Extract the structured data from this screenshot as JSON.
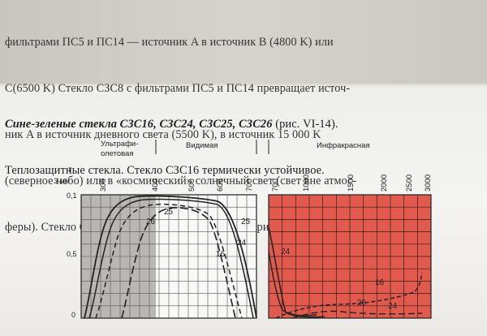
{
  "text": {
    "paragraph1_lines": [
      "фильтрами ПС5 и ПС14 — источник A в источник B (4800 K) или",
      "C(6500 K) Стекло СЗС8 с фильтрами ПС5 и ПС14 превращает источ-",
      "ник A в источник дневного света (5500 K), в источник 15 000 K",
      "(северное небо) или в «космический» солнечный свет (свет вне атмос-",
      "феры). Стекло СЗС22 вместе с ФС7 — сенситометрический синий."
    ],
    "heading_bold": "Сине-зеленые стекла СЗС16, СЗС24, СЗС25, СЗС26",
    "heading_rest": " (рис. VI-14).",
    "paragraph2_line2": "Теплозащитные стекла. Стекло СЗС16 термически устойчивое."
  },
  "figure": {
    "y_axis_symbol": "τ",
    "y_axis_unit": "3 мм",
    "y_ticks": [
      "0,1",
      "0,5",
      "0"
    ],
    "region_labels": {
      "uv": "Ультрафи-\nолетовая",
      "visible": "Видимая",
      "ir": "Инфракрасная"
    },
    "left_x_ticks": [
      "300",
      "400",
      "500",
      "600",
      "700"
    ],
    "right_x_ticks": [
      "700",
      "1000",
      "1500",
      "2000",
      "2500",
      "3000"
    ],
    "curve_labels": [
      "25",
      "26",
      "24",
      "16",
      "25",
      "24",
      "16",
      "24",
      "26"
    ],
    "colors": {
      "ir_panel": "#e05a4e",
      "uv_shade": "#b8b6b2",
      "grid": "#444444"
    }
  }
}
